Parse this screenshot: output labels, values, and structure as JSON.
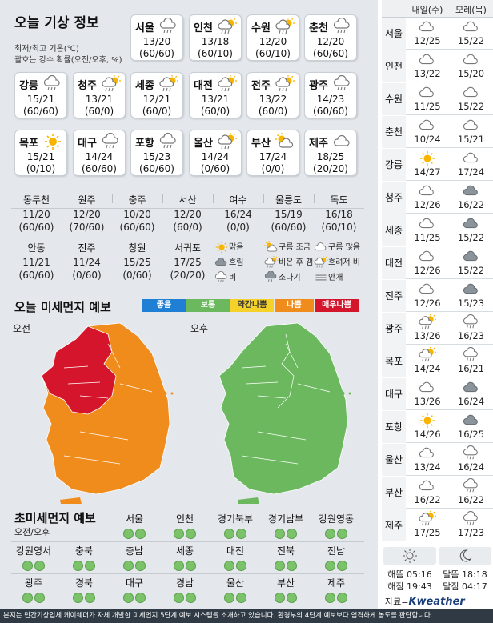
{
  "left_title": "오늘 기상 정보",
  "left_subnote_1": "최저/최고 기온(℃)",
  "left_subnote_2": "괄호는 강수 확률(오전/오후, %)",
  "cards": [
    {
      "city": "서울",
      "icon": "rain-cloud-icon",
      "temp": "13/20",
      "prob": "(60/60)"
    },
    {
      "city": "인천",
      "icon": "sun-cloud-rain-icon",
      "temp": "13/18",
      "prob": "(60/10)"
    },
    {
      "city": "수원",
      "icon": "sun-cloud-rain-icon",
      "temp": "12/20",
      "prob": "(60/10)"
    },
    {
      "city": "춘천",
      "icon": "rain-cloud-icon",
      "temp": "12/20",
      "prob": "(60/60)"
    },
    {
      "city": "강릉",
      "icon": "rain-cloud-icon",
      "temp": "15/21",
      "prob": "(60/60)"
    },
    {
      "city": "청주",
      "icon": "sun-cloud-rain-icon",
      "temp": "13/21",
      "prob": "(60/0)"
    },
    {
      "city": "세종",
      "icon": "sun-cloud-rain-icon",
      "temp": "12/21",
      "prob": "(60/0)"
    },
    {
      "city": "대전",
      "icon": "sun-cloud-rain-icon",
      "temp": "13/21",
      "prob": "(60/0)"
    },
    {
      "city": "전주",
      "icon": "sun-cloud-rain-icon",
      "temp": "13/22",
      "prob": "(60/0)"
    },
    {
      "city": "광주",
      "icon": "rain-cloud-icon",
      "temp": "14/23",
      "prob": "(60/60)"
    },
    {
      "city": "목포",
      "icon": "sun-icon",
      "temp": "15/21",
      "prob": "(0/10)"
    },
    {
      "city": "대구",
      "icon": "rain-cloud-icon",
      "temp": "14/24",
      "prob": "(60/60)"
    },
    {
      "city": "포항",
      "icon": "rain-cloud-icon",
      "temp": "15/23",
      "prob": "(60/60)"
    },
    {
      "city": "울산",
      "icon": "sun-cloud-rain-icon",
      "temp": "14/24",
      "prob": "(0/60)"
    },
    {
      "city": "부산",
      "icon": "sun-cloud-icon",
      "temp": "17/24",
      "prob": "(0/0)"
    },
    {
      "city": "제주",
      "icon": "cloud-icon",
      "temp": "18/25",
      "prob": "(20/20)"
    }
  ],
  "mini_row1": [
    {
      "city": "동두천",
      "temp": "11/20",
      "prob": "(60/60)"
    },
    {
      "city": "원주",
      "temp": "12/20",
      "prob": "(70/60)"
    },
    {
      "city": "충주",
      "temp": "10/20",
      "prob": "(60/60)"
    },
    {
      "city": "서산",
      "temp": "12/20",
      "prob": "(60/0)"
    },
    {
      "city": "여수",
      "temp": "16/24",
      "prob": "(0/0)"
    },
    {
      "city": "울릉도",
      "temp": "15/19",
      "prob": "(60/60)"
    },
    {
      "city": "독도",
      "temp": "16/18",
      "prob": "(60/10)"
    }
  ],
  "mini_row2": [
    {
      "city": "안동",
      "temp": "11/21",
      "prob": "(60/60)"
    },
    {
      "city": "진주",
      "temp": "11/24",
      "prob": "(0/60)"
    },
    {
      "city": "창원",
      "temp": "15/25",
      "prob": "(0/60)"
    },
    {
      "city": "서귀포",
      "temp": "17/25",
      "prob": "(20/20)"
    }
  ],
  "weather_legend": [
    {
      "label": "맑음",
      "icon": "sun-icon"
    },
    {
      "label": "구름 조금",
      "icon": "sun-cloud-icon"
    },
    {
      "label": "구름 많음",
      "icon": "cloud-icon"
    },
    {
      "label": "흐림",
      "icon": "dark-cloud-icon"
    },
    {
      "label": "비온 후 갬",
      "icon": "sun-cloud-rain-icon"
    },
    {
      "label": "흐려져 비",
      "icon": "sun-cloud-rain-icon"
    },
    {
      "label": "비",
      "icon": "rain-cloud-icon"
    },
    {
      "label": "소나기",
      "icon": "shower-icon"
    },
    {
      "label": "안개",
      "icon": "fog-icon"
    }
  ],
  "pm_title": "오늘 미세먼지 예보",
  "pm_levels": [
    {
      "label": "좋음",
      "color": "#1e7fd4"
    },
    {
      "label": "보통",
      "color": "#6cb85f"
    },
    {
      "label": "약간나쁨",
      "color": "#f5d12a"
    },
    {
      "label": "나쁨",
      "color": "#f08c1c"
    },
    {
      "label": "매우나쁨",
      "color": "#d4152b"
    }
  ],
  "pm_am_label": "오전",
  "pm_pm_label": "오후",
  "ultra_title": "초미세먼지 예보",
  "ultra_sub": "오전/오후",
  "ultra_row1": [
    "서울",
    "인천",
    "경기북부",
    "경기남부",
    "강원영동"
  ],
  "ultra_row2": [
    "강원영서",
    "충북",
    "충남",
    "세종",
    "대전",
    "전북",
    "전남"
  ],
  "ultra_row3": [
    "광주",
    "경북",
    "대구",
    "경남",
    "울산",
    "부산",
    "제주"
  ],
  "right_header": {
    "day1": "내일(수)",
    "day2": "모레(목)"
  },
  "right_rows": [
    {
      "city": "서울",
      "i1": "cloud-icon",
      "t1": "12/25",
      "i2": "cloud-icon",
      "t2": "15/22"
    },
    {
      "city": "인천",
      "i1": "cloud-icon",
      "t1": "13/22",
      "i2": "cloud-icon",
      "t2": "15/20"
    },
    {
      "city": "수원",
      "i1": "cloud-icon",
      "t1": "11/25",
      "i2": "cloud-icon",
      "t2": "15/22"
    },
    {
      "city": "춘천",
      "i1": "cloud-icon",
      "t1": "10/24",
      "i2": "cloud-icon",
      "t2": "15/21"
    },
    {
      "city": "강릉",
      "i1": "sun-icon",
      "t1": "14/27",
      "i2": "cloud-icon",
      "t2": "17/24"
    },
    {
      "city": "청주",
      "i1": "cloud-icon",
      "t1": "12/26",
      "i2": "dark-cloud-icon",
      "t2": "16/22"
    },
    {
      "city": "세종",
      "i1": "cloud-icon",
      "t1": "11/25",
      "i2": "dark-cloud-icon",
      "t2": "15/22"
    },
    {
      "city": "대전",
      "i1": "cloud-icon",
      "t1": "12/26",
      "i2": "dark-cloud-icon",
      "t2": "15/22"
    },
    {
      "city": "전주",
      "i1": "cloud-icon",
      "t1": "12/26",
      "i2": "dark-cloud-icon",
      "t2": "15/23"
    },
    {
      "city": "광주",
      "i1": "sun-cloud-rain-icon",
      "t1": "13/26",
      "i2": "rain-cloud-icon",
      "t2": "16/23"
    },
    {
      "city": "목포",
      "i1": "sun-cloud-rain-icon",
      "t1": "14/24",
      "i2": "rain-cloud-icon",
      "t2": "16/21"
    },
    {
      "city": "대구",
      "i1": "cloud-icon",
      "t1": "13/26",
      "i2": "dark-cloud-icon",
      "t2": "16/24"
    },
    {
      "city": "포항",
      "i1": "sun-icon",
      "t1": "14/26",
      "i2": "dark-cloud-icon",
      "t2": "16/25"
    },
    {
      "city": "울산",
      "i1": "cloud-icon",
      "t1": "13/24",
      "i2": "rain-cloud-icon",
      "t2": "16/24"
    },
    {
      "city": "부산",
      "i1": "cloud-icon",
      "t1": "16/22",
      "i2": "rain-cloud-icon",
      "t2": "16/22"
    },
    {
      "city": "제주",
      "i1": "sun-cloud-rain-icon",
      "t1": "17/25",
      "i2": "rain-cloud-icon",
      "t2": "17/23"
    }
  ],
  "sun_moon": {
    "sunrise": "해뜸 05:16",
    "moonrise": "달뜸 18:18",
    "sunset": "해짐 19:43",
    "moonset": "달짐 04:17"
  },
  "source_prefix": "자료=",
  "source_logo": "Kweather",
  "footer": "본지는 민간기상업체 케이웨더가 자체 개발한 미세먼지 5단계 예보 시스템을 소개하고 있습니다. 환경부의 4단계 예보보다 엄격하게 농도를 판단합니다.",
  "colors": {
    "pm_am_severe": "#d4152b",
    "pm_am_bad": "#f08c1c",
    "pm_pm_normal": "#6cb85f"
  }
}
